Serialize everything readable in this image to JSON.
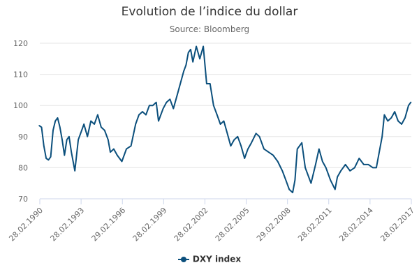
{
  "chart_data": {
    "type": "line",
    "title": "Evolution de l’indice du dollar",
    "subtitle": "Source: Bloomberg",
    "xlabel": "",
    "ylabel": "",
    "ylim": [
      70,
      120
    ],
    "yticks": [
      70,
      80,
      90,
      100,
      110,
      120
    ],
    "xlim": [
      "1990-02-28",
      "2017-02-28"
    ],
    "xticks": [
      {
        "date": "1990-02-28",
        "label": "28.02.1990"
      },
      {
        "date": "1993-02-28",
        "label": "28.02.1993"
      },
      {
        "date": "1996-02-29",
        "label": "29.02.1996"
      },
      {
        "date": "1999-02-28",
        "label": "28.02.1999"
      },
      {
        "date": "2002-02-28",
        "label": "28.02.2002"
      },
      {
        "date": "2005-02-28",
        "label": "28.02.2005"
      },
      {
        "date": "2008-02-29",
        "label": "29.02.2008"
      },
      {
        "date": "2011-02-28",
        "label": "28.02.2011"
      },
      {
        "date": "2014-02-28",
        "label": "28.02.2014"
      },
      {
        "date": "2017-02-28",
        "label": "28.02.2017"
      }
    ],
    "grid": "horizontal",
    "legend_position": "bottom-center",
    "series": [
      {
        "name": "DXY index",
        "color": "#0b4f7c",
        "x": [
          "1990-02",
          "1990-04",
          "1990-06",
          "1990-08",
          "1990-10",
          "1990-12",
          "1991-02",
          "1991-04",
          "1991-06",
          "1991-08",
          "1991-10",
          "1991-12",
          "1992-02",
          "1992-04",
          "1992-06",
          "1992-09",
          "1992-12",
          "1993-02",
          "1993-05",
          "1993-08",
          "1993-11",
          "1994-02",
          "1994-05",
          "1994-08",
          "1994-11",
          "1995-02",
          "1995-04",
          "1995-07",
          "1995-10",
          "1996-02",
          "1996-06",
          "1996-10",
          "1997-02",
          "1997-05",
          "1997-08",
          "1997-11",
          "1998-02",
          "1998-05",
          "1998-08",
          "1998-10",
          "1999-02",
          "1999-05",
          "1999-08",
          "1999-11",
          "2000-02",
          "2000-05",
          "2000-08",
          "2000-10",
          "2000-12",
          "2001-02",
          "2001-04",
          "2001-07",
          "2001-10",
          "2002-01",
          "2002-04",
          "2002-07",
          "2002-10",
          "2003-01",
          "2003-04",
          "2003-07",
          "2003-10",
          "2004-01",
          "2004-04",
          "2004-07",
          "2004-10",
          "2005-01",
          "2005-04",
          "2005-07",
          "2005-11",
          "2006-02",
          "2006-06",
          "2006-10",
          "2007-02",
          "2007-06",
          "2007-10",
          "2008-01",
          "2008-04",
          "2008-07",
          "2008-09",
          "2008-11",
          "2009-03",
          "2009-06",
          "2009-11",
          "2010-03",
          "2010-06",
          "2010-09",
          "2010-12",
          "2011-04",
          "2011-08",
          "2011-10",
          "2012-01",
          "2012-05",
          "2012-09",
          "2013-01",
          "2013-05",
          "2013-09",
          "2014-01",
          "2014-05",
          "2014-08",
          "2014-11",
          "2015-01",
          "2015-03",
          "2015-06",
          "2015-09",
          "2015-12",
          "2016-03",
          "2016-06",
          "2016-09",
          "2016-12",
          "2017-02"
        ],
        "y": [
          93.5,
          93,
          87,
          83,
          82.5,
          83.5,
          92,
          95,
          96,
          93,
          89,
          84,
          89,
          90,
          85,
          79,
          89,
          91,
          94,
          90,
          95,
          94,
          97,
          93,
          92,
          89,
          85,
          86,
          84,
          82,
          86,
          87,
          94,
          97,
          98,
          97,
          100,
          100,
          101,
          95,
          99,
          101,
          102,
          99,
          103,
          107,
          111,
          113,
          117,
          118,
          114,
          119,
          115,
          119,
          107,
          107,
          100,
          97,
          94,
          95,
          91,
          87,
          89,
          90,
          87,
          83,
          86,
          88,
          91,
          90,
          86,
          85,
          84,
          82,
          79,
          76,
          73,
          72,
          76,
          86,
          88,
          80,
          75,
          81,
          86,
          82,
          80,
          76,
          73,
          77,
          79,
          81,
          79,
          80,
          83,
          81,
          81,
          80,
          80,
          86,
          90,
          97,
          95,
          96,
          98,
          95,
          94,
          96,
          100,
          101
        ]
      }
    ]
  }
}
